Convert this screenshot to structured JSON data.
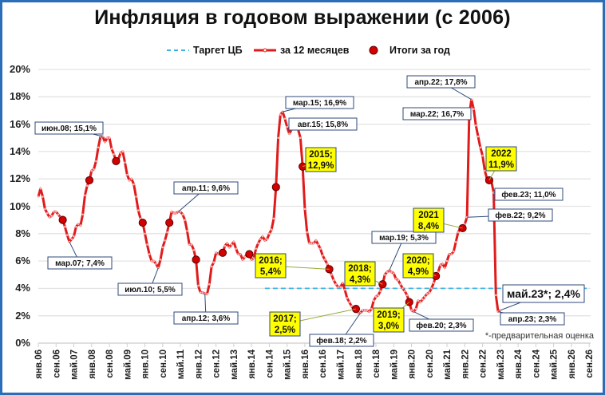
{
  "title": "Инфляция в годовом выражении (с 2006)",
  "legend": [
    {
      "label": "Таргет ЦБ",
      "style": "dashed",
      "color": "#3bb4e6"
    },
    {
      "label": "за 12 месяцев",
      "style": "line-marker",
      "color": "#e01b1b"
    },
    {
      "label": "Итоги за год",
      "style": "dot",
      "color": "#d40000"
    }
  ],
  "footnote": "*-предварительная оценка",
  "colors": {
    "line": "#e01b1b",
    "annual_dot": "#d40000",
    "target": "#3bb4e6",
    "grid": "#e3e3e3",
    "frame": "#2a6db8",
    "callout_yellow": "#ffff00",
    "callout_border": "#2f4a7a"
  },
  "chart_data": {
    "type": "line",
    "title": "Инфляция в годовом выражении (с 2006)",
    "xlabel": "",
    "ylabel": "",
    "ylim": [
      0,
      20
    ],
    "yticks": [
      "0%",
      "2%",
      "4%",
      "6%",
      "8%",
      "10%",
      "12%",
      "14%",
      "16%",
      "18%",
      "20%"
    ],
    "grid": true,
    "legend_position": "top",
    "x_tick_labels": [
      "янв.06",
      "сен.06",
      "май.07",
      "янв.08",
      "сен.08",
      "май.09",
      "янв.10",
      "сен.10",
      "май.11",
      "янв.12",
      "сен.12",
      "май.13",
      "янв.14",
      "сен.14",
      "май.15",
      "янв.16",
      "сен.16",
      "май.17",
      "янв.18",
      "сен.18",
      "май.19",
      "янв.20",
      "сен.20",
      "май.21",
      "янв.22",
      "сен.22",
      "май.23",
      "янв.24",
      "сен.24",
      "май.25",
      "янв.26",
      "сен.26"
    ],
    "series": [
      {
        "name": "за 12 месяцев",
        "unit": "%",
        "points": [
          [
            "2006-01",
            10.7
          ],
          [
            "2006-02",
            11.3
          ],
          [
            "2006-03",
            10.7
          ],
          [
            "2006-04",
            9.8
          ],
          [
            "2006-05",
            9.5
          ],
          [
            "2006-06",
            9.2
          ],
          [
            "2006-07",
            9.3
          ],
          [
            "2006-08",
            9.6
          ],
          [
            "2006-09",
            9.6
          ],
          [
            "2006-10",
            9.4
          ],
          [
            "2006-11",
            9.2
          ],
          [
            "2006-12",
            9.0
          ],
          [
            "2007-01",
            8.5
          ],
          [
            "2007-02",
            7.9
          ],
          [
            "2007-03",
            7.4
          ],
          [
            "2007-04",
            7.6
          ],
          [
            "2007-05",
            7.8
          ],
          [
            "2007-06",
            8.5
          ],
          [
            "2007-07",
            8.7
          ],
          [
            "2007-08",
            8.6
          ],
          [
            "2007-09",
            9.4
          ],
          [
            "2007-10",
            10.8
          ],
          [
            "2007-11",
            11.5
          ],
          [
            "2007-12",
            11.9
          ],
          [
            "2008-01",
            12.6
          ],
          [
            "2008-02",
            12.7
          ],
          [
            "2008-03",
            13.3
          ],
          [
            "2008-04",
            14.3
          ],
          [
            "2008-05",
            15.1
          ],
          [
            "2008-06",
            15.1
          ],
          [
            "2008-07",
            14.7
          ],
          [
            "2008-08",
            15.0
          ],
          [
            "2008-09",
            15.0
          ],
          [
            "2008-10",
            14.2
          ],
          [
            "2008-11",
            13.8
          ],
          [
            "2008-12",
            13.3
          ],
          [
            "2009-01",
            13.4
          ],
          [
            "2009-02",
            13.9
          ],
          [
            "2009-03",
            14.0
          ],
          [
            "2009-04",
            13.2
          ],
          [
            "2009-05",
            12.3
          ],
          [
            "2009-06",
            11.9
          ],
          [
            "2009-07",
            12.0
          ],
          [
            "2009-08",
            11.6
          ],
          [
            "2009-09",
            10.7
          ],
          [
            "2009-10",
            9.7
          ],
          [
            "2009-11",
            9.1
          ],
          [
            "2009-12",
            8.8
          ],
          [
            "2010-01",
            8.0
          ],
          [
            "2010-02",
            7.2
          ],
          [
            "2010-03",
            6.5
          ],
          [
            "2010-04",
            6.0
          ],
          [
            "2010-05",
            6.0
          ],
          [
            "2010-06",
            5.8
          ],
          [
            "2010-07",
            5.5
          ],
          [
            "2010-08",
            6.1
          ],
          [
            "2010-09",
            7.0
          ],
          [
            "2010-10",
            7.5
          ],
          [
            "2010-11",
            8.1
          ],
          [
            "2010-12",
            8.8
          ],
          [
            "2011-01",
            9.6
          ],
          [
            "2011-02",
            9.5
          ],
          [
            "2011-03",
            9.5
          ],
          [
            "2011-04",
            9.6
          ],
          [
            "2011-05",
            9.6
          ],
          [
            "2011-06",
            9.4
          ],
          [
            "2011-07",
            9.0
          ],
          [
            "2011-08",
            8.2
          ],
          [
            "2011-09",
            7.2
          ],
          [
            "2011-10",
            7.2
          ],
          [
            "2011-11",
            6.8
          ],
          [
            "2011-12",
            6.1
          ],
          [
            "2012-01",
            4.2
          ],
          [
            "2012-02",
            3.7
          ],
          [
            "2012-03",
            3.7
          ],
          [
            "2012-04",
            3.6
          ],
          [
            "2012-05",
            3.6
          ],
          [
            "2012-06",
            4.3
          ],
          [
            "2012-07",
            5.6
          ],
          [
            "2012-08",
            5.9
          ],
          [
            "2012-09",
            6.6
          ],
          [
            "2012-10",
            6.5
          ],
          [
            "2012-11",
            6.5
          ],
          [
            "2012-12",
            6.6
          ],
          [
            "2013-01",
            7.1
          ],
          [
            "2013-02",
            7.3
          ],
          [
            "2013-03",
            7.0
          ],
          [
            "2013-04",
            7.2
          ],
          [
            "2013-05",
            7.4
          ],
          [
            "2013-06",
            6.9
          ],
          [
            "2013-07",
            6.5
          ],
          [
            "2013-08",
            6.5
          ],
          [
            "2013-09",
            6.1
          ],
          [
            "2013-10",
            6.3
          ],
          [
            "2013-11",
            6.5
          ],
          [
            "2013-12",
            6.5
          ],
          [
            "2014-01",
            6.1
          ],
          [
            "2014-02",
            6.2
          ],
          [
            "2014-03",
            6.9
          ],
          [
            "2014-04",
            7.3
          ],
          [
            "2014-05",
            7.6
          ],
          [
            "2014-06",
            7.8
          ],
          [
            "2014-07",
            7.5
          ],
          [
            "2014-08",
            7.6
          ],
          [
            "2014-09",
            8.0
          ],
          [
            "2014-10",
            8.3
          ],
          [
            "2014-11",
            9.1
          ],
          [
            "2014-12",
            11.4
          ],
          [
            "2015-01",
            15.0
          ],
          [
            "2015-02",
            16.7
          ],
          [
            "2015-03",
            16.9
          ],
          [
            "2015-04",
            16.4
          ],
          [
            "2015-05",
            15.8
          ],
          [
            "2015-06",
            15.3
          ],
          [
            "2015-07",
            15.6
          ],
          [
            "2015-08",
            15.8
          ],
          [
            "2015-09",
            15.7
          ],
          [
            "2015-10",
            15.6
          ],
          [
            "2015-11",
            15.0
          ],
          [
            "2015-12",
            12.9
          ],
          [
            "2016-01",
            9.8
          ],
          [
            "2016-02",
            8.1
          ],
          [
            "2016-03",
            7.3
          ],
          [
            "2016-04",
            7.3
          ],
          [
            "2016-05",
            7.3
          ],
          [
            "2016-06",
            7.5
          ],
          [
            "2016-07",
            7.2
          ],
          [
            "2016-08",
            6.9
          ],
          [
            "2016-09",
            6.4
          ],
          [
            "2016-10",
            6.1
          ],
          [
            "2016-11",
            5.8
          ],
          [
            "2016-12",
            5.4
          ],
          [
            "2017-01",
            5.0
          ],
          [
            "2017-02",
            4.6
          ],
          [
            "2017-03",
            4.3
          ],
          [
            "2017-04",
            4.1
          ],
          [
            "2017-05",
            4.1
          ],
          [
            "2017-06",
            4.4
          ],
          [
            "2017-07",
            3.9
          ],
          [
            "2017-08",
            3.3
          ],
          [
            "2017-09",
            3.0
          ],
          [
            "2017-10",
            2.7
          ],
          [
            "2017-11",
            2.5
          ],
          [
            "2017-12",
            2.5
          ],
          [
            "2018-01",
            2.2
          ],
          [
            "2018-02",
            2.2
          ],
          [
            "2018-03",
            2.4
          ],
          [
            "2018-04",
            2.4
          ],
          [
            "2018-05",
            2.4
          ],
          [
            "2018-06",
            2.3
          ],
          [
            "2018-07",
            2.5
          ],
          [
            "2018-08",
            3.1
          ],
          [
            "2018-09",
            3.4
          ],
          [
            "2018-10",
            3.5
          ],
          [
            "2018-11",
            3.8
          ],
          [
            "2018-12",
            4.3
          ],
          [
            "2019-01",
            5.0
          ],
          [
            "2019-02",
            5.2
          ],
          [
            "2019-03",
            5.3
          ],
          [
            "2019-04",
            5.2
          ],
          [
            "2019-05",
            5.1
          ],
          [
            "2019-06",
            4.7
          ],
          [
            "2019-07",
            4.6
          ],
          [
            "2019-08",
            4.3
          ],
          [
            "2019-09",
            4.0
          ],
          [
            "2019-10",
            3.8
          ],
          [
            "2019-11",
            3.5
          ],
          [
            "2019-12",
            3.0
          ],
          [
            "2020-01",
            2.4
          ],
          [
            "2020-02",
            2.3
          ],
          [
            "2020-03",
            2.5
          ],
          [
            "2020-04",
            3.1
          ],
          [
            "2020-05",
            3.0
          ],
          [
            "2020-06",
            3.2
          ],
          [
            "2020-07",
            3.4
          ],
          [
            "2020-08",
            3.6
          ],
          [
            "2020-09",
            3.7
          ],
          [
            "2020-10",
            4.0
          ],
          [
            "2020-11",
            4.4
          ],
          [
            "2020-12",
            4.9
          ],
          [
            "2021-01",
            5.2
          ],
          [
            "2021-02",
            5.7
          ],
          [
            "2021-03",
            5.8
          ],
          [
            "2021-04",
            5.5
          ],
          [
            "2021-05",
            6.0
          ],
          [
            "2021-06",
            6.5
          ],
          [
            "2021-07",
            6.5
          ],
          [
            "2021-08",
            6.7
          ],
          [
            "2021-09",
            7.4
          ],
          [
            "2021-10",
            8.1
          ],
          [
            "2021-11",
            8.4
          ],
          [
            "2021-12",
            8.4
          ],
          [
            "2022-01",
            8.7
          ],
          [
            "2022-02",
            9.2
          ],
          [
            "2022-03",
            16.7
          ],
          [
            "2022-04",
            17.8
          ],
          [
            "2022-05",
            17.1
          ],
          [
            "2022-06",
            15.9
          ],
          [
            "2022-07",
            15.1
          ],
          [
            "2022-08",
            14.3
          ],
          [
            "2022-09",
            13.7
          ],
          [
            "2022-10",
            12.6
          ],
          [
            "2022-11",
            12.0
          ],
          [
            "2022-12",
            11.9
          ],
          [
            "2023-01",
            11.8
          ],
          [
            "2023-02",
            11.0
          ],
          [
            "2023-03",
            3.5
          ],
          [
            "2023-04",
            2.3
          ],
          [
            "2023-05",
            2.4
          ]
        ]
      },
      {
        "name": "Итоги за год",
        "unit": "%",
        "points": [
          [
            "2006",
            9.0
          ],
          [
            "2007",
            11.9
          ],
          [
            "2008",
            13.3
          ],
          [
            "2009",
            8.8
          ],
          [
            "2010",
            8.8
          ],
          [
            "2011",
            6.1
          ],
          [
            "2012",
            6.6
          ],
          [
            "2013",
            6.5
          ],
          [
            "2014",
            11.4
          ],
          [
            "2015",
            12.9
          ],
          [
            "2016",
            5.4
          ],
          [
            "2017",
            2.5
          ],
          [
            "2018",
            4.3
          ],
          [
            "2019",
            3.0
          ],
          [
            "2020",
            4.9
          ],
          [
            "2021",
            8.4
          ],
          [
            "2022",
            11.9
          ]
        ]
      },
      {
        "name": "Таргет ЦБ",
        "unit": "%",
        "value": 4,
        "from": "2014-07",
        "to": "2026-09"
      }
    ],
    "annotations": [
      {
        "label": "июн.08; 15,1%",
        "x": "2008-06",
        "y": 15.1,
        "style": "white"
      },
      {
        "label": "мар.07; 7,4%",
        "x": "2007-03",
        "y": 7.4,
        "style": "white"
      },
      {
        "label": "июл.10; 5,5%",
        "x": "2010-07",
        "y": 5.5,
        "style": "white"
      },
      {
        "label": "апр.11; 9,6%",
        "x": "2011-04",
        "y": 9.6,
        "style": "white"
      },
      {
        "label": "апр.12; 3,6%",
        "x": "2012-04",
        "y": 3.6,
        "style": "white"
      },
      {
        "label": "мар.15; 16,9%",
        "x": "2015-03",
        "y": 16.9,
        "style": "white"
      },
      {
        "label": "авг.15; 15,8%",
        "x": "2015-08",
        "y": 15.8,
        "style": "white"
      },
      {
        "label": "фев.18; 2,2%",
        "x": "2018-02",
        "y": 2.2,
        "style": "white"
      },
      {
        "label": "мар.19; 5,3%",
        "x": "2019-03",
        "y": 5.3,
        "style": "white"
      },
      {
        "label": "фев.20; 2,3%",
        "x": "2020-02",
        "y": 2.3,
        "style": "white"
      },
      {
        "label": "фев.22; 9,2%",
        "x": "2022-02",
        "y": 9.2,
        "style": "white"
      },
      {
        "label": "апр.22; 17,8%",
        "x": "2022-04",
        "y": 17.8,
        "style": "white"
      },
      {
        "label": "мар.22; 16,7%",
        "x": "2022-03",
        "y": 16.7,
        "style": "white"
      },
      {
        "label": "фев.23; 11,0%",
        "x": "2023-02",
        "y": 11.0,
        "style": "white"
      },
      {
        "label": "апр.23; 2,3%",
        "x": "2023-04",
        "y": 2.3,
        "style": "white"
      },
      {
        "label": "май.23*; 2,4%",
        "x": "2023-05",
        "y": 2.4,
        "style": "white-large"
      },
      {
        "label": "2015; 12,9%",
        "x": "2015",
        "y": 12.9,
        "style": "yellow"
      },
      {
        "label": "2016; 5,4%",
        "x": "2016",
        "y": 5.4,
        "style": "yellow"
      },
      {
        "label": "2017; 2,5%",
        "x": "2017",
        "y": 2.5,
        "style": "yellow"
      },
      {
        "label": "2018; 4,3%",
        "x": "2018",
        "y": 4.3,
        "style": "yellow"
      },
      {
        "label": "2019; 3,0%",
        "x": "2019",
        "y": 3.0,
        "style": "yellow"
      },
      {
        "label": "2020; 4,9%",
        "x": "2020",
        "y": 4.9,
        "style": "yellow"
      },
      {
        "label": "2021 8,4%",
        "x": "2021",
        "y": 8.4,
        "style": "yellow"
      },
      {
        "label": "2022 11,9%",
        "x": "2022",
        "y": 11.9,
        "style": "yellow"
      }
    ],
    "footnote": "*-предварительная оценка"
  }
}
